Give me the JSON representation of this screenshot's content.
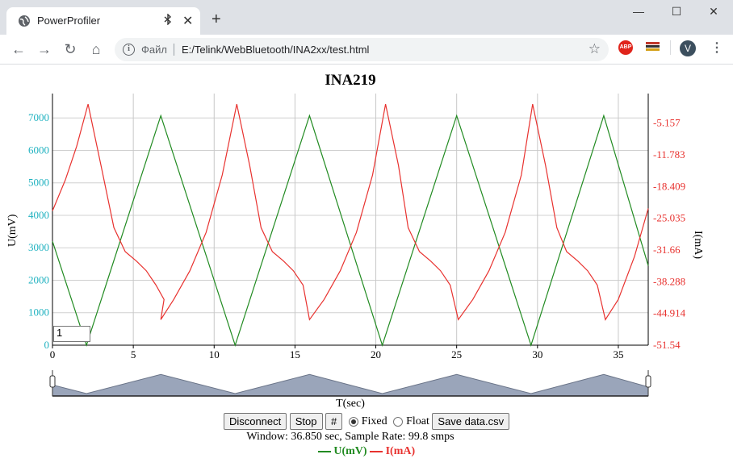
{
  "browser": {
    "tab_title": "PowerProfiler",
    "tab_close": "✕",
    "new_tab": "+",
    "window_controls": [
      "—",
      "☐",
      "✕"
    ],
    "omnibox_label": "Файл",
    "url": "E:/Telink/WebBluetooth/INA2xx/test.html",
    "profile_initial": "V",
    "abp_label": "ABP"
  },
  "chart_data": {
    "type": "line",
    "title": "INA219",
    "xlabel": "T(sec)",
    "ylabel_left": "U(mV)",
    "ylabel_right": "I(mA)",
    "xlim": [
      0,
      36.85
    ],
    "ylim_left": [
      0,
      7750
    ],
    "ylim_right": [
      -51.54,
      1.0
    ],
    "x_ticks": [
      0,
      5,
      10,
      15,
      20,
      25,
      30,
      35
    ],
    "y_ticks_left": [
      0,
      1000,
      2000,
      3000,
      4000,
      5000,
      6000,
      7000
    ],
    "y_ticks_right": [
      "-5.157",
      "-11.783",
      "-18.409",
      "-25.035",
      "-31.66",
      "-38.288",
      "-44.914",
      "-51.54"
    ],
    "y_ticks_right_values": [
      -5.157,
      -11.783,
      -18.409,
      -25.035,
      -31.66,
      -38.288,
      -44.914,
      -51.54
    ],
    "grid": true,
    "series": [
      {
        "name": "U(mV)",
        "axis": "left",
        "color": "#228b22",
        "points": [
          [
            0,
            3200
          ],
          [
            2.1,
            0
          ],
          [
            6.7,
            7070
          ],
          [
            11.3,
            0
          ],
          [
            15.9,
            7070
          ],
          [
            20.4,
            0
          ],
          [
            25.0,
            7070
          ],
          [
            29.6,
            0
          ],
          [
            34.1,
            7070
          ],
          [
            36.85,
            2450
          ]
        ]
      },
      {
        "name": "I(mA)",
        "axis": "right",
        "color": "#e8322f",
        "points": [
          [
            0,
            -23.5
          ],
          [
            0.8,
            -17
          ],
          [
            1.5,
            -10
          ],
          [
            2.2,
            -1.2
          ],
          [
            3.0,
            -14
          ],
          [
            3.8,
            -27
          ],
          [
            4.5,
            -32
          ],
          [
            5.2,
            -34
          ],
          [
            5.8,
            -36
          ],
          [
            6.4,
            -39
          ],
          [
            6.9,
            -42
          ],
          [
            6.7,
            -46.2
          ],
          [
            7.5,
            -42
          ],
          [
            8.5,
            -36
          ],
          [
            9.5,
            -28
          ],
          [
            10.5,
            -16
          ],
          [
            11.4,
            -1.2
          ],
          [
            12.2,
            -14
          ],
          [
            12.9,
            -27
          ],
          [
            13.6,
            -32
          ],
          [
            14.3,
            -34
          ],
          [
            14.9,
            -36
          ],
          [
            15.5,
            -39
          ],
          [
            15.9,
            -46.2
          ],
          [
            16.8,
            -42
          ],
          [
            17.8,
            -36
          ],
          [
            18.8,
            -28
          ],
          [
            19.8,
            -16
          ],
          [
            20.6,
            -1.2
          ],
          [
            21.4,
            -14
          ],
          [
            22.0,
            -27
          ],
          [
            22.7,
            -32
          ],
          [
            23.4,
            -34
          ],
          [
            24.0,
            -36
          ],
          [
            24.6,
            -39
          ],
          [
            25.1,
            -46.2
          ],
          [
            26.0,
            -42
          ],
          [
            27.0,
            -36
          ],
          [
            28.0,
            -28
          ],
          [
            29.0,
            -16
          ],
          [
            29.7,
            -1.2
          ],
          [
            30.5,
            -14
          ],
          [
            31.2,
            -27
          ],
          [
            31.8,
            -32
          ],
          [
            32.5,
            -34
          ],
          [
            33.1,
            -36
          ],
          [
            33.7,
            -39
          ],
          [
            34.2,
            -46.2
          ],
          [
            35.0,
            -42
          ],
          [
            36.0,
            -33
          ],
          [
            36.85,
            -23
          ]
        ]
      }
    ]
  },
  "controls": {
    "zoom_value": "1",
    "disconnect": "Disconnect",
    "stop": "Stop",
    "hash": "#",
    "fixed": "Fixed",
    "float": "Float",
    "save": "Save data.csv",
    "status": "Window: 36.850 sec, Sample Rate: 99.8 smps"
  },
  "legend": {
    "u_label": "U(mV)",
    "i_label": "I(mA)",
    "u_color": "#228b22",
    "i_color": "#e8322f"
  }
}
